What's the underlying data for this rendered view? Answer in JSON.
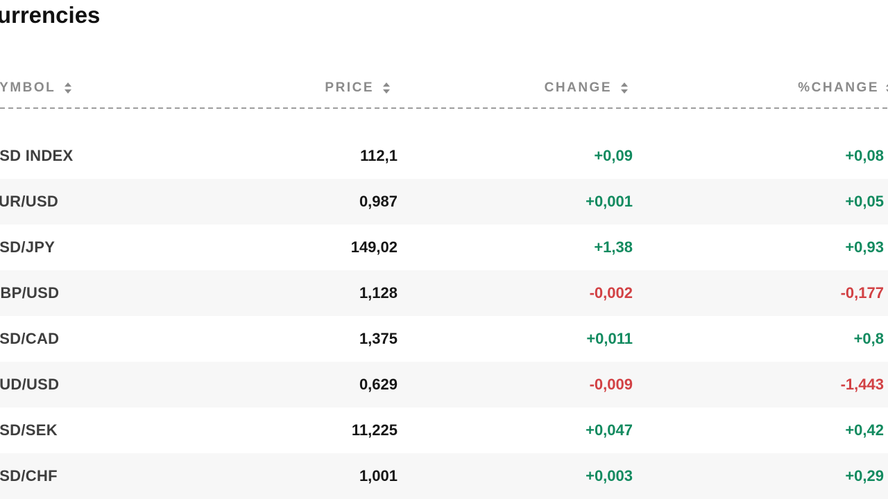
{
  "title": "Currencies",
  "colors": {
    "positive": "#128a5f",
    "negative": "#d24144",
    "row_alt": "#f7f7f7",
    "header_text": "#8b8b8b"
  },
  "table": {
    "columns": [
      {
        "key": "symbol",
        "label": "SYMBOL",
        "sortable": true,
        "icon": "sort-up-down-icon"
      },
      {
        "key": "price",
        "label": "PRICE",
        "sortable": true,
        "icon": "sort-up-down-icon"
      },
      {
        "key": "change",
        "label": "CHANGE",
        "sortable": true,
        "icon": "sort-up-down-icon"
      },
      {
        "key": "pct_change",
        "label": "%CHANGE",
        "sortable": true,
        "icon": "sort-up-down-icon"
      }
    ],
    "rows": [
      {
        "symbol": "USD INDEX",
        "price": "112,1",
        "change": "+0,09",
        "pct_change": "+0,08"
      },
      {
        "symbol": "EUR/USD",
        "price": "0,987",
        "change": "+0,001",
        "pct_change": "+0,05"
      },
      {
        "symbol": "USD/JPY",
        "price": "149,02",
        "change": "+1,38",
        "pct_change": "+0,93"
      },
      {
        "symbol": "GBP/USD",
        "price": "1,128",
        "change": "-0,002",
        "pct_change": "-0,177"
      },
      {
        "symbol": "USD/CAD",
        "price": "1,375",
        "change": "+0,011",
        "pct_change": "+0,8"
      },
      {
        "symbol": "AUD/USD",
        "price": "0,629",
        "change": "-0,009",
        "pct_change": "-1,443"
      },
      {
        "symbol": "USD/SEK",
        "price": "11,225",
        "change": "+0,047",
        "pct_change": "+0,42"
      },
      {
        "symbol": "USD/CHF",
        "price": "1,001",
        "change": "+0,003",
        "pct_change": "+0,29"
      }
    ]
  }
}
